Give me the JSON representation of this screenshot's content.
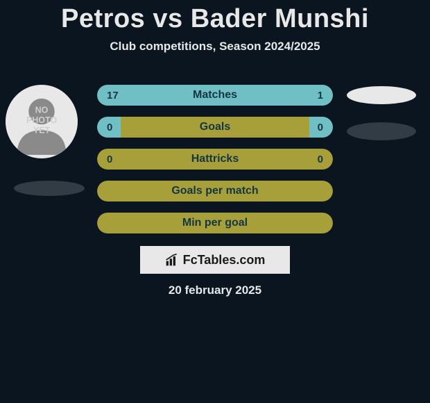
{
  "title": "Petros vs Bader Munshi",
  "subtitle": "Club competitions, Season 2024/2025",
  "avatar_placeholder": "NO PHOTO YET",
  "colors": {
    "background": "#0a1520",
    "text_light": "#e8e8e8",
    "bar_bg": "#a7a03a",
    "bar_seg": "#6fbfc5",
    "bar_text": "#133642",
    "shadow_dark": "#313c45",
    "shadow_light": "#e8e8e8"
  },
  "bars": [
    {
      "label": "Matches",
      "left_val": "17",
      "right_val": "1",
      "left_pct": 81,
      "right_pct": 19
    },
    {
      "label": "Goals",
      "left_val": "0",
      "right_val": "0",
      "left_pct": 10,
      "right_pct": 10
    },
    {
      "label": "Hattricks",
      "left_val": "0",
      "right_val": "0",
      "left_pct": 0,
      "right_pct": 0
    },
    {
      "label": "Goals per match",
      "left_val": "",
      "right_val": "",
      "left_pct": 0,
      "right_pct": 0
    },
    {
      "label": "Min per goal",
      "left_val": "",
      "right_val": "",
      "left_pct": 0,
      "right_pct": 0
    }
  ],
  "logo_text": "FcTables.com",
  "date": "20 february 2025"
}
